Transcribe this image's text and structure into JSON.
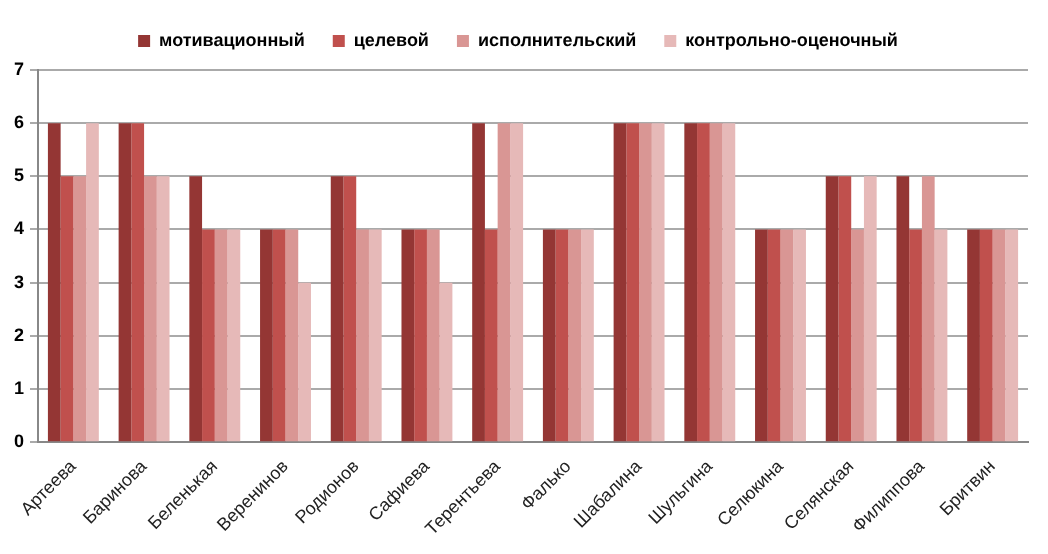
{
  "chart_data": {
    "type": "bar",
    "categories": [
      "Артеева",
      "Баринова",
      "Беленькая",
      "Веренинов",
      "Родионов",
      "Сафиева",
      "Терентьева",
      "Фалько",
      "Шабалина",
      "Шульгина",
      "Селюкина",
      "Селянская",
      "Филиппова",
      "Бритвин"
    ],
    "series": [
      {
        "name": "мотивационный",
        "color": "#943634",
        "values": [
          6,
          6,
          5,
          4,
          5,
          4,
          6,
          4,
          6,
          6,
          4,
          5,
          5,
          4
        ]
      },
      {
        "name": "целевой",
        "color": "#c0504d",
        "values": [
          5,
          6,
          4,
          4,
          5,
          4,
          4,
          4,
          6,
          6,
          4,
          5,
          4,
          4
        ]
      },
      {
        "name": "исполнительский",
        "color": "#d99694",
        "values": [
          5,
          5,
          4,
          4,
          4,
          4,
          6,
          4,
          6,
          6,
          4,
          4,
          5,
          4
        ]
      },
      {
        "name": "контрольно-оценочный",
        "color": "#e6b9b8",
        "values": [
          6,
          5,
          4,
          3,
          4,
          3,
          6,
          4,
          6,
          6,
          4,
          5,
          4,
          4
        ]
      }
    ],
    "ylim": [
      0,
      7
    ],
    "yticks": [
      0,
      1,
      2,
      3,
      4,
      5,
      6,
      7
    ],
    "grid": "y",
    "legend": "top"
  }
}
